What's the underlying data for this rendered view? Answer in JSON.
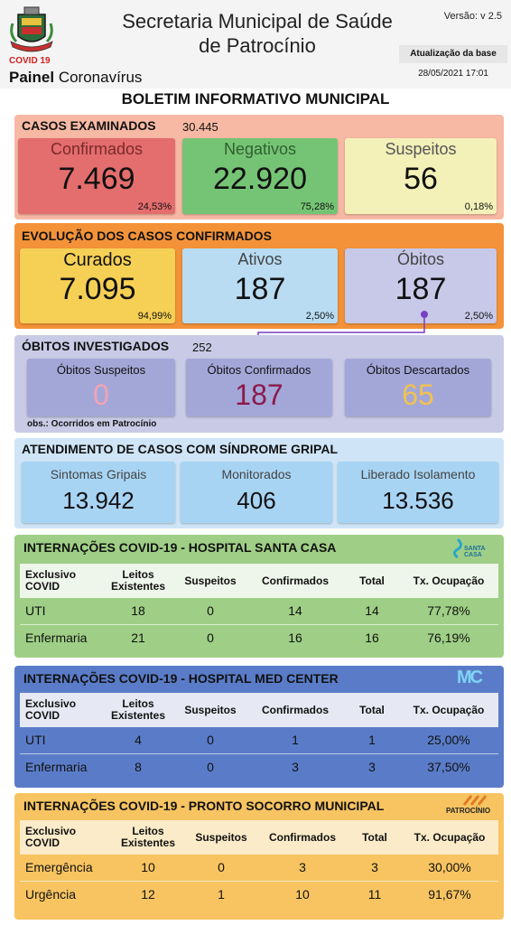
{
  "header": {
    "covid_label": "COVID 19",
    "painel_bold": "Painel",
    "painel_rest": "Coronavírus",
    "title_line1": "Secretaria Municipal de Saúde",
    "title_line2": "de Patrocínio",
    "version": "Versão: v 2.5",
    "update_label": "Atualização da base",
    "update_date": "28/05/2021 17:01"
  },
  "bulletin_title": "BOLETIM INFORMATIVO MUNICIPAL",
  "examined": {
    "title": "CASOS EXAMINADOS",
    "total": "30.445",
    "cards": [
      {
        "label": "Confirmados",
        "value": "7.469",
        "pct": "24,53%",
        "color": "#e46d6d"
      },
      {
        "label": "Negativos",
        "value": "22.920",
        "pct": "75,28%",
        "color": "#75c475"
      },
      {
        "label": "Suspeitos",
        "value": "56",
        "pct": "0,18%",
        "color": "#f3f0b8"
      }
    ]
  },
  "evolution": {
    "title": "EVOLUÇÃO DOS CASOS CONFIRMADOS",
    "cards": [
      {
        "label": "Curados",
        "value": "7.095",
        "pct": "94,99%",
        "color": "#f6d054"
      },
      {
        "label": "Ativos",
        "value": "187",
        "pct": "2,50%",
        "color": "#b9dcf3"
      },
      {
        "label": "Óbitos",
        "value": "187",
        "pct": "2,50%",
        "color": "#c8c8e8"
      }
    ]
  },
  "deaths": {
    "title": "ÓBITOS INVESTIGADOS",
    "total": "252",
    "note": "obs.: Ocorridos em Patrocínio",
    "cards": [
      {
        "label": "Óbitos Suspeitos",
        "value": "0",
        "value_color": "#f2a3b4"
      },
      {
        "label": "Óbitos Confirmados",
        "value": "187",
        "value_color": "#8a1a4a"
      },
      {
        "label": "Óbitos Descartados",
        "value": "65",
        "value_color": "#f2c24e"
      }
    ]
  },
  "syndrome": {
    "title": "ATENDIMENTO DE CASOS COM SÍNDROME GRIPAL",
    "cards": [
      {
        "label": "Sintomas Gripais",
        "value": "13.942"
      },
      {
        "label": "Monitorados",
        "value": "406"
      },
      {
        "label": "Liberado Isolamento",
        "value": "13.536"
      }
    ]
  },
  "santa_casa": {
    "title": "INTERNAÇÕES COVID-19 - HOSPITAL SANTA CASA",
    "logo_text": "SANTA CASA",
    "headers": [
      "Exclusivo COVID",
      "Leitos Existentes",
      "Suspeitos",
      "Confirmados",
      "Total",
      "Tx. Ocupação"
    ],
    "rows": [
      [
        "UTI",
        "18",
        "0",
        "14",
        "14",
        "77,78%"
      ],
      [
        "Enfermaria",
        "21",
        "0",
        "16",
        "16",
        "76,19%"
      ]
    ]
  },
  "med_center": {
    "title": "INTERNAÇÕES COVID-19 - HOSPITAL MED CENTER",
    "logo_text": "MC",
    "headers": [
      "Exclusivo COVID",
      "Leitos Existentes",
      "Suspeitos",
      "Confirmados",
      "Total",
      "Tx. Ocupação"
    ],
    "rows": [
      [
        "UTI",
        "4",
        "0",
        "1",
        "1",
        "25,00%"
      ],
      [
        "Enfermaria",
        "8",
        "0",
        "3",
        "3",
        "37,50%"
      ]
    ]
  },
  "pronto_socorro": {
    "title": "INTERNAÇÕES COVID-19 - PRONTO SOCORRO MUNICIPAL",
    "logo_text": "PATROCÍNIO",
    "headers": [
      "Exclusivo COVID",
      "Leitos Existentes",
      "Suspeitos",
      "Confirmados",
      "Total",
      "Tx. Ocupação"
    ],
    "rows": [
      [
        "Emergência",
        "10",
        "0",
        "3",
        "3",
        "30,00%"
      ],
      [
        "Urgência",
        "12",
        "1",
        "10",
        "11",
        "91,67%"
      ]
    ]
  }
}
